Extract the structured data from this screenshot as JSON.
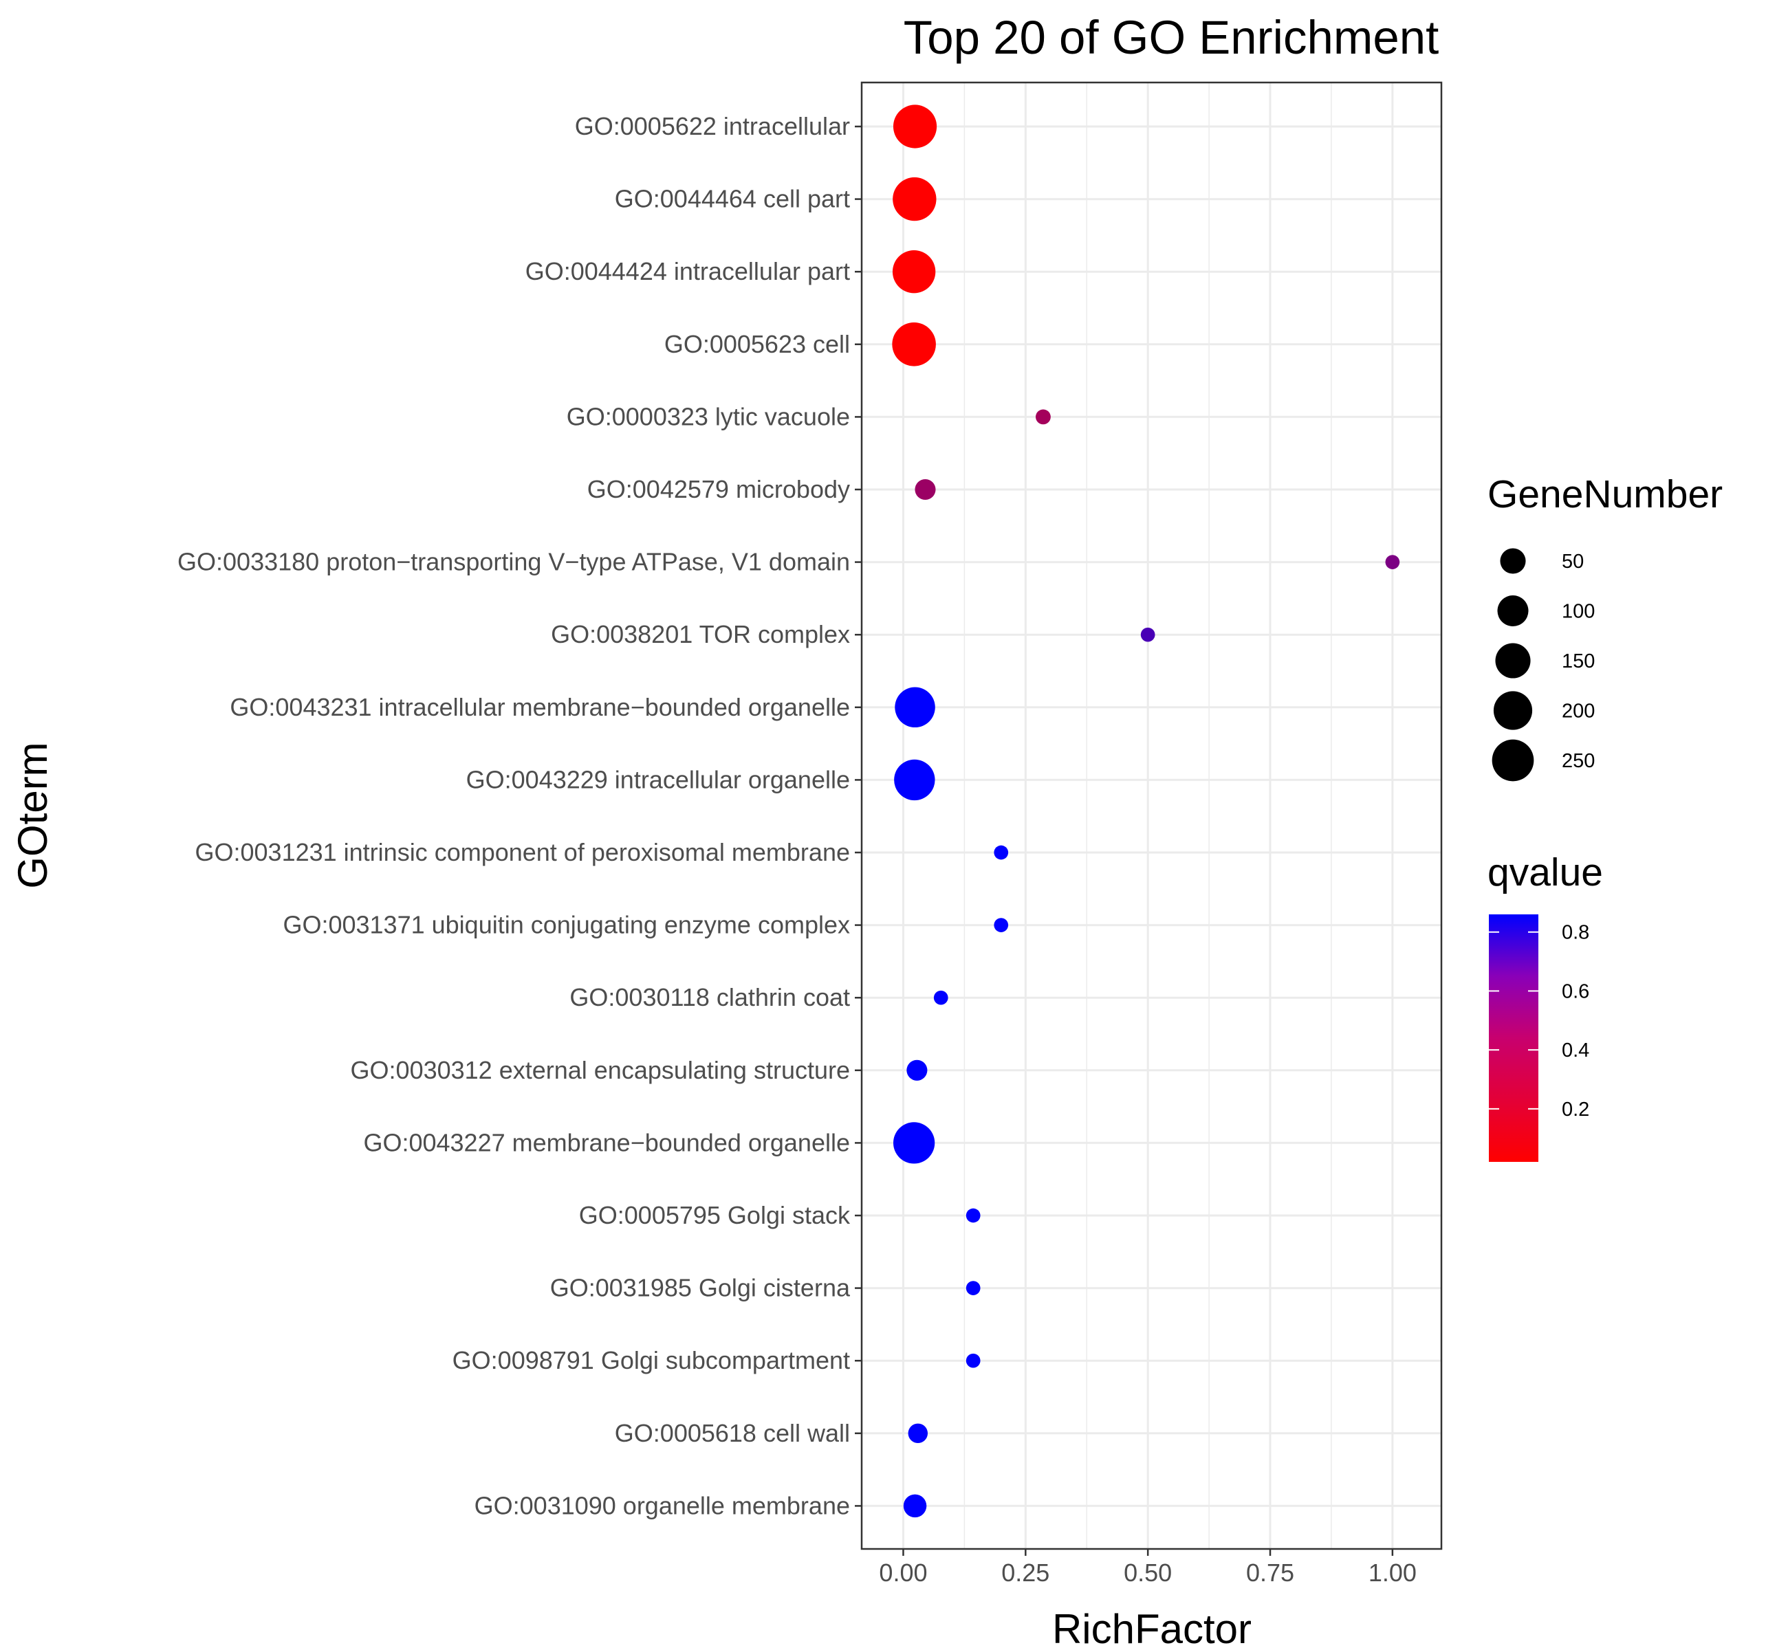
{
  "chart_data": {
    "type": "scatter",
    "title": "Top 20 of GO Enrichment",
    "xlabel": "RichFactor",
    "ylabel": "GOterm",
    "xlim": [
      -0.085,
      1.1
    ],
    "x_ticks": [
      "0.00",
      "0.25",
      "0.50",
      "0.75",
      "1.00"
    ],
    "x_tick_values": [
      0,
      0.25,
      0.5,
      0.75,
      1.0
    ],
    "grid": true,
    "categories": [
      "GO:0005622 intracellular",
      "GO:0044464 cell part",
      "GO:0044424 intracellular part",
      "GO:0005623 cell",
      "GO:0000323 lytic vacuole",
      "GO:0042579 microbody",
      "GO:0033180 proton−transporting V−type ATPase, V1 domain",
      "GO:0038201 TOR complex",
      "GO:0043231 intracellular membrane−bounded organelle",
      "GO:0043229 intracellular organelle",
      "GO:0031231 intrinsic component of peroxisomal membrane",
      "GO:0031371 ubiquitin conjugating enzyme complex",
      "GO:0030118 clathrin coat",
      "GO:0030312 external encapsulating structure",
      "GO:0043227 membrane−bounded organelle",
      "GO:0005795 Golgi stack",
      "GO:0031985 Golgi cisterna",
      "GO:0098791 Golgi subcompartment",
      "GO:0005618 cell wall",
      "GO:0031090 organelle membrane"
    ],
    "points": [
      {
        "term": "GO:0005622 intracellular",
        "rich_factor": 0.024,
        "gene_number": 280,
        "qvalue": 0.02
      },
      {
        "term": "GO:0044464 cell part",
        "rich_factor": 0.023,
        "gene_number": 282,
        "qvalue": 0.02
      },
      {
        "term": "GO:0044424 intracellular part",
        "rich_factor": 0.022,
        "gene_number": 270,
        "qvalue": 0.02
      },
      {
        "term": "GO:0005623 cell",
        "rich_factor": 0.022,
        "gene_number": 285,
        "qvalue": 0.02
      },
      {
        "term": "GO:0000323 lytic vacuole",
        "rich_factor": 0.286,
        "gene_number": 2,
        "qvalue": 0.32
      },
      {
        "term": "GO:0042579 microbody",
        "rich_factor": 0.045,
        "gene_number": 20,
        "qvalue": 0.35
      },
      {
        "term": "GO:0033180 proton−transporting V−type ATPase, V1 domain",
        "rich_factor": 1.0,
        "gene_number": 1,
        "qvalue": 0.45
      },
      {
        "term": "GO:0038201 TOR complex",
        "rich_factor": 0.5,
        "gene_number": 1,
        "qvalue": 0.62
      },
      {
        "term": "GO:0043231 intracellular membrane−bounded organelle",
        "rich_factor": 0.024,
        "gene_number": 225,
        "qvalue": 0.86
      },
      {
        "term": "GO:0043229 intracellular organelle",
        "rich_factor": 0.023,
        "gene_number": 235,
        "qvalue": 0.86
      },
      {
        "term": "GO:0031231 intrinsic component of peroxisomal membrane",
        "rich_factor": 0.2,
        "gene_number": 1,
        "qvalue": 0.86
      },
      {
        "term": "GO:0031371 ubiquitin conjugating enzyme complex",
        "rich_factor": 0.2,
        "gene_number": 1,
        "qvalue": 0.86
      },
      {
        "term": "GO:0030118 clathrin coat",
        "rich_factor": 0.077,
        "gene_number": 1,
        "qvalue": 0.86
      },
      {
        "term": "GO:0030312 external encapsulating structure",
        "rich_factor": 0.028,
        "gene_number": 20,
        "qvalue": 0.86
      },
      {
        "term": "GO:0043227 membrane−bounded organelle",
        "rich_factor": 0.022,
        "gene_number": 245,
        "qvalue": 0.86
      },
      {
        "term": "GO:0005795 Golgi stack",
        "rich_factor": 0.143,
        "gene_number": 1,
        "qvalue": 0.86
      },
      {
        "term": "GO:0031985 Golgi cisterna",
        "rich_factor": 0.143,
        "gene_number": 1,
        "qvalue": 0.86
      },
      {
        "term": "GO:0098791 Golgi subcompartment",
        "rich_factor": 0.143,
        "gene_number": 1,
        "qvalue": 0.86
      },
      {
        "term": "GO:0005618 cell wall",
        "rich_factor": 0.03,
        "gene_number": 15,
        "qvalue": 0.86
      },
      {
        "term": "GO:0031090 organelle membrane",
        "rich_factor": 0.024,
        "gene_number": 33,
        "qvalue": 0.86
      }
    ],
    "legends": {
      "size": {
        "title": "GeneNumber",
        "breaks": [
          50,
          100,
          150,
          200,
          250
        ],
        "labels": [
          "50",
          "100",
          "150",
          "200",
          "250"
        ]
      },
      "color": {
        "title": "qvalue",
        "breaks": [
          0.2,
          0.4,
          0.6,
          0.8
        ],
        "labels": [
          "0.2",
          "0.4",
          "0.6",
          "0.8"
        ],
        "range": [
          0.02,
          0.86
        ],
        "low_color": "#FF0000",
        "high_color": "#0000FF"
      },
      "placement": "right"
    }
  }
}
